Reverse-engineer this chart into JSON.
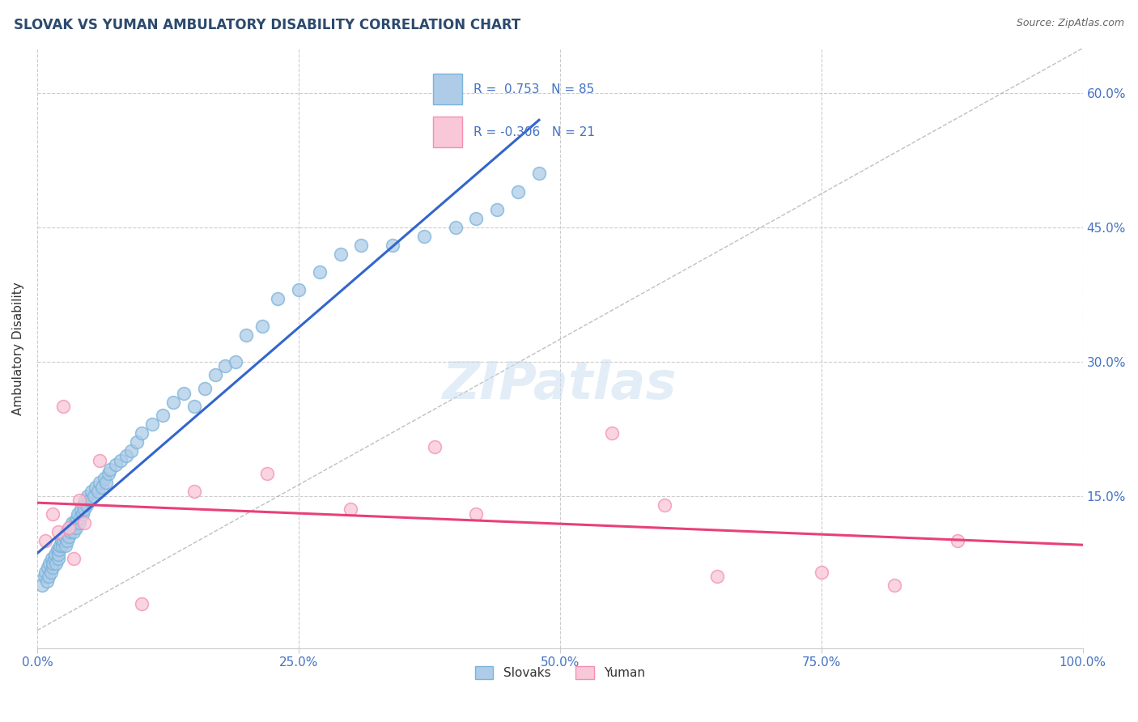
{
  "title": "SLOVAK VS YUMAN AMBULATORY DISABILITY CORRELATION CHART",
  "source": "Source: ZipAtlas.com",
  "ylabel": "Ambulatory Disability",
  "xlabel": "",
  "xlim": [
    0.0,
    1.0
  ],
  "ylim": [
    -0.02,
    0.65
  ],
  "ytick_vals": [
    0.15,
    0.3,
    0.45,
    0.6
  ],
  "ytick_labels": [
    "15.0%",
    "30.0%",
    "45.0%",
    "60.0%"
  ],
  "xtick_vals": [
    0.0,
    0.25,
    0.5,
    0.75,
    1.0
  ],
  "xtick_labels": [
    "0.0%",
    "25.0%",
    "50.0%",
    "75.0%",
    "100.0%"
  ],
  "background_color": "#ffffff",
  "grid_color": "#cccccc",
  "blue_color": "#7ab3d9",
  "blue_fill": "#aecce8",
  "pink_color": "#f48fb1",
  "pink_fill": "#f9c8d8",
  "blue_line_color": "#3366cc",
  "pink_line_color": "#e8407a",
  "ref_line_color": "#b0b0b0",
  "legend_R_blue": "0.753",
  "legend_N_blue": "85",
  "legend_R_pink": "-0.306",
  "legend_N_pink": "21",
  "title_color": "#2c4a6e",
  "source_color": "#666666",
  "ylabel_color": "#333333",
  "tick_color": "#4472c4",
  "watermark_color": "#c8ddf0",
  "slovaks_x": [
    0.005,
    0.007,
    0.008,
    0.009,
    0.01,
    0.011,
    0.012,
    0.013,
    0.014,
    0.015,
    0.015,
    0.016,
    0.017,
    0.018,
    0.019,
    0.02,
    0.02,
    0.021,
    0.022,
    0.023,
    0.024,
    0.025,
    0.026,
    0.027,
    0.028,
    0.029,
    0.03,
    0.031,
    0.032,
    0.033,
    0.034,
    0.035,
    0.036,
    0.037,
    0.038,
    0.039,
    0.04,
    0.041,
    0.042,
    0.043,
    0.044,
    0.045,
    0.046,
    0.047,
    0.048,
    0.05,
    0.052,
    0.054,
    0.056,
    0.058,
    0.06,
    0.062,
    0.064,
    0.066,
    0.068,
    0.07,
    0.075,
    0.08,
    0.085,
    0.09,
    0.095,
    0.1,
    0.11,
    0.12,
    0.13,
    0.14,
    0.15,
    0.16,
    0.17,
    0.18,
    0.19,
    0.2,
    0.215,
    0.23,
    0.25,
    0.27,
    0.29,
    0.31,
    0.34,
    0.37,
    0.4,
    0.42,
    0.44,
    0.46,
    0.48
  ],
  "slovaks_y": [
    0.05,
    0.06,
    0.065,
    0.055,
    0.07,
    0.06,
    0.075,
    0.065,
    0.08,
    0.07,
    0.075,
    0.08,
    0.085,
    0.075,
    0.09,
    0.08,
    0.085,
    0.09,
    0.095,
    0.1,
    0.095,
    0.1,
    0.105,
    0.095,
    0.11,
    0.1,
    0.105,
    0.115,
    0.11,
    0.12,
    0.115,
    0.11,
    0.12,
    0.115,
    0.125,
    0.13,
    0.12,
    0.125,
    0.135,
    0.13,
    0.14,
    0.135,
    0.145,
    0.14,
    0.15,
    0.145,
    0.155,
    0.15,
    0.16,
    0.155,
    0.165,
    0.16,
    0.17,
    0.165,
    0.175,
    0.18,
    0.185,
    0.19,
    0.195,
    0.2,
    0.21,
    0.22,
    0.23,
    0.24,
    0.255,
    0.265,
    0.25,
    0.27,
    0.285,
    0.295,
    0.3,
    0.33,
    0.34,
    0.37,
    0.38,
    0.4,
    0.42,
    0.43,
    0.43,
    0.44,
    0.45,
    0.46,
    0.47,
    0.49,
    0.51
  ],
  "yuman_x": [
    0.008,
    0.015,
    0.02,
    0.025,
    0.03,
    0.035,
    0.04,
    0.045,
    0.06,
    0.1,
    0.15,
    0.22,
    0.3,
    0.38,
    0.42,
    0.55,
    0.6,
    0.65,
    0.75,
    0.82,
    0.88
  ],
  "yuman_y": [
    0.1,
    0.13,
    0.11,
    0.25,
    0.115,
    0.08,
    0.145,
    0.12,
    0.19,
    0.03,
    0.155,
    0.175,
    0.135,
    0.205,
    0.13,
    0.22,
    0.14,
    0.06,
    0.065,
    0.05,
    0.1
  ]
}
